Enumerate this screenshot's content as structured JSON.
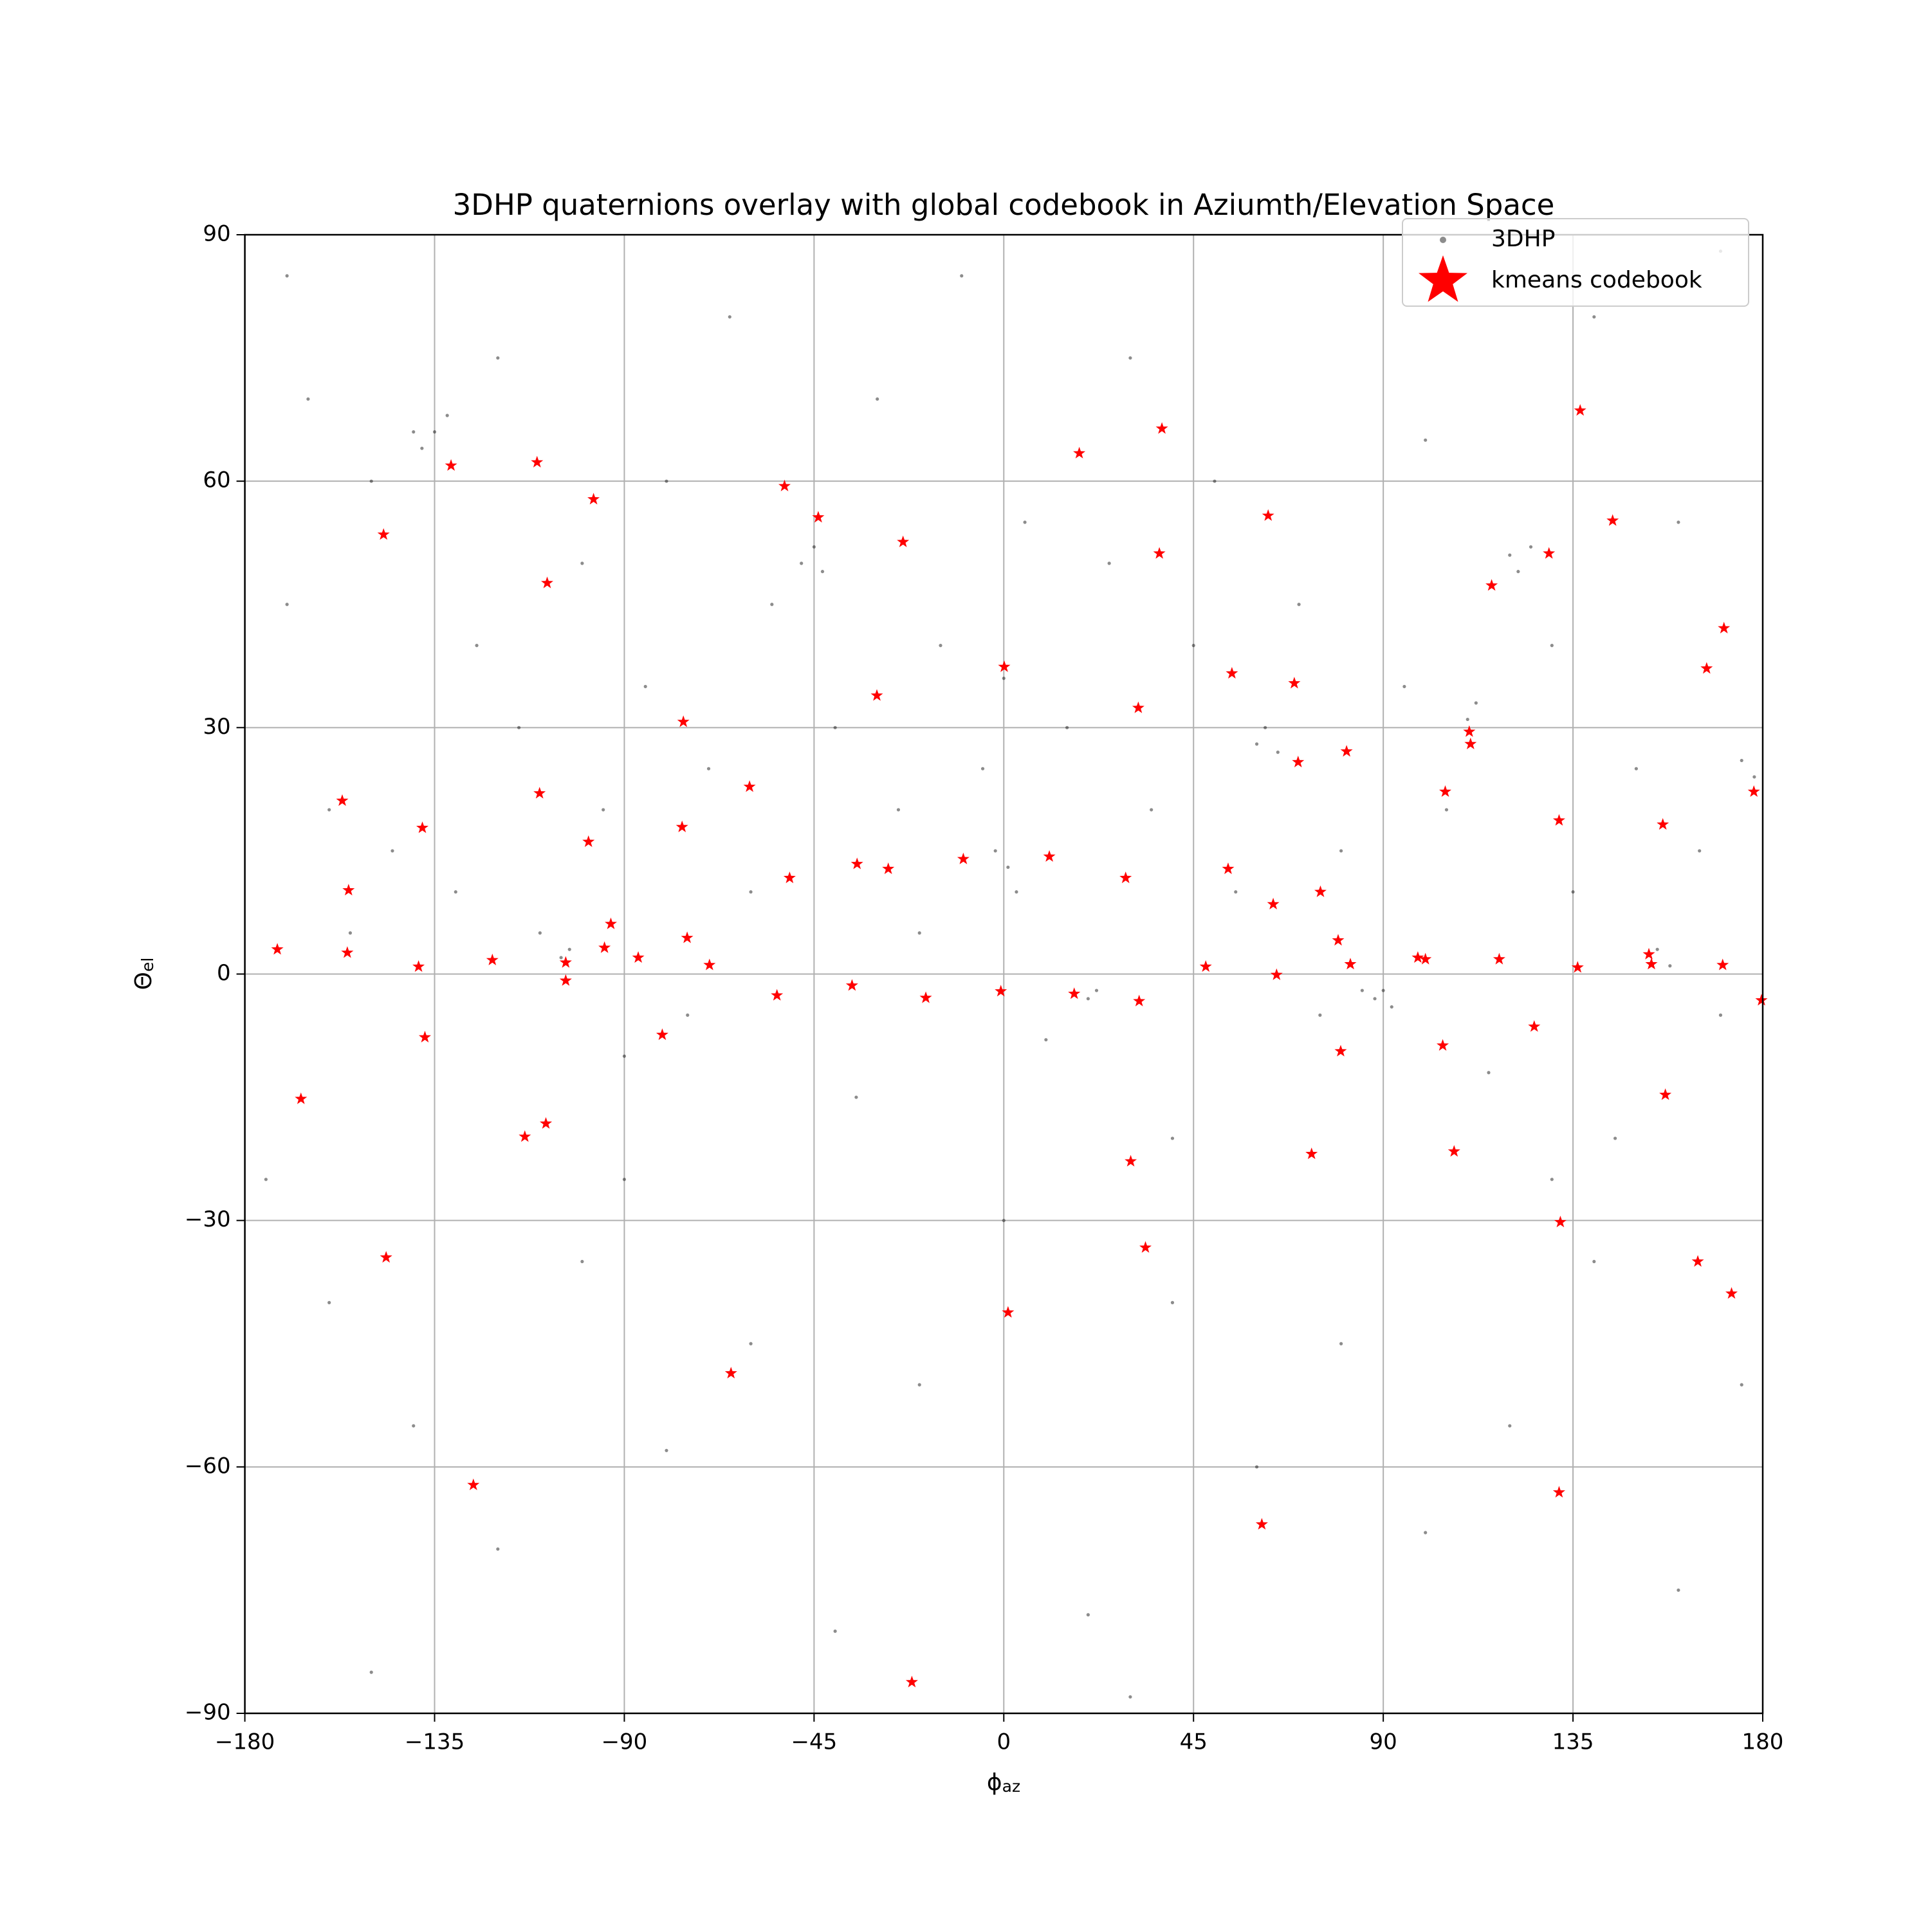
{
  "chart_data": {
    "type": "scatter",
    "title": "3DHP quaternions overlay with global codebook in Aziumth/Elevation Space",
    "xlabel": {
      "symbol": "ϕ",
      "subscript": "az"
    },
    "ylabel": {
      "symbol": "Θ",
      "subscript": "el"
    },
    "xlim": [
      -180,
      180
    ],
    "ylim": [
      -90,
      90
    ],
    "xticks": [
      {
        "value": -180,
        "label": "−180"
      },
      {
        "value": -135,
        "label": "−135"
      },
      {
        "value": -90,
        "label": "−90"
      },
      {
        "value": -45,
        "label": "−45"
      },
      0,
      45,
      90,
      135,
      180
    ],
    "yticks": [
      {
        "value": -90,
        "label": "−90"
      },
      {
        "value": -60,
        "label": "−60"
      },
      {
        "value": -30,
        "label": "−30"
      },
      0,
      30,
      60,
      90
    ],
    "grid": true,
    "legend": "upper right",
    "series": [
      {
        "name": "3DHP",
        "color": "#000000",
        "marker": "dot",
        "x": [
          -170,
          -165,
          -160,
          -155,
          -150,
          -145,
          -140,
          -138,
          -135,
          -132,
          -130,
          -125,
          -120,
          -115,
          -110,
          -105,
          -103,
          -100,
          -95,
          -90,
          -85,
          -80,
          -75,
          -70,
          -65,
          -60,
          -55,
          -48,
          -45,
          -43,
          -40,
          -35,
          -30,
          -25,
          -20,
          -15,
          -10,
          -5,
          0,
          1,
          -2,
          3,
          5,
          10,
          15,
          20,
          22,
          25,
          30,
          35,
          40,
          45,
          50,
          55,
          60,
          62,
          65,
          70,
          75,
          80,
          85,
          88,
          90,
          92,
          95,
          100,
          105,
          110,
          112,
          115,
          120,
          122,
          125,
          130,
          135,
          140,
          145,
          150,
          155,
          158,
          160,
          165,
          170,
          175,
          178,
          -175,
          -160,
          -140,
          -120,
          -100,
          -80,
          -60,
          -40,
          -20,
          0,
          20,
          40,
          60,
          80,
          100,
          120,
          140,
          160,
          175,
          -150,
          -90,
          30,
          130,
          -170,
          170
        ],
        "y": [
          45,
          70,
          20,
          5,
          60,
          15,
          66,
          64,
          66,
          68,
          10,
          40,
          75,
          30,
          5,
          2,
          3,
          50,
          20,
          -10,
          35,
          60,
          -5,
          25,
          80,
          10,
          45,
          50,
          52,
          49,
          30,
          -15,
          70,
          20,
          5,
          40,
          85,
          25,
          36,
          13,
          15,
          10,
          55,
          -8,
          30,
          -3,
          -2,
          50,
          75,
          20,
          -20,
          40,
          60,
          10,
          28,
          30,
          27,
          45,
          -5,
          15,
          -2,
          -3,
          -2,
          -4,
          35,
          65,
          20,
          31,
          33,
          -12,
          51,
          49,
          52,
          40,
          10,
          80,
          -20,
          25,
          3,
          1,
          55,
          15,
          -5,
          26,
          24,
          -25,
          -40,
          -55,
          -70,
          -35,
          -58,
          -45,
          -80,
          -50,
          -30,
          -78,
          -40,
          -60,
          -45,
          -68,
          -55,
          -35,
          -75,
          -50,
          -85,
          -25,
          -88,
          -25,
          85,
          88
        ]
      },
      {
        "name": "kmeans codebook",
        "color": "#ff0000",
        "marker": "star",
        "x": [
          -172.3,
          -166.7,
          -156.9,
          -155.4,
          -155.7,
          -147.1,
          -146.5,
          -137.9,
          -138.8,
          -137.3,
          -131.1,
          -125.8,
          -121.3,
          -110.7,
          -110.1,
          -108.3,
          -108.6,
          -113.6,
          -103.9,
          -103.9,
          -97.3,
          -98.5,
          -93.2,
          -94.7,
          -86.7,
          -81.0,
          -76.0,
          -76.3,
          -75.1,
          -69.8,
          -64.7,
          -60.3,
          -52.0,
          -53.8,
          -50.8,
          -44.0,
          -36.0,
          -34.8,
          -30.1,
          -27.4,
          -23.9,
          -21.8,
          -18.5,
          -9.6,
          -0.7,
          0.1,
          1.0,
          10.8,
          16.7,
          17.9,
          28.9,
          30.1,
          31.9,
          32.1,
          33.6,
          36.9,
          37.5,
          47.9,
          53.2,
          54.1,
          62.7,
          61.2,
          63.9,
          64.7,
          68.9,
          69.8,
          73.0,
          75.1,
          79.3,
          79.9,
          81.3,
          82.2,
          98.2,
          100.0,
          104.1,
          104.7,
          106.8,
          110.4,
          110.7,
          115.7,
          117.5,
          125.8,
          129.3,
          131.7,
          132.0,
          131.7,
          136.1,
          136.7,
          144.4,
          153.0,
          153.6,
          156.3,
          156.9,
          164.6,
          166.7,
          170.8,
          170.5,
          172.6,
          177.9,
          179.7
        ],
        "y": [
          3.0,
          -15.2,
          21.1,
          10.2,
          2.6,
          53.5,
          -34.5,
          17.8,
          0.9,
          -7.7,
          61.9,
          -62.2,
          1.7,
          62.3,
          22.0,
          47.6,
          -18.2,
          -19.8,
          1.4,
          -0.8,
          57.8,
          16.1,
          6.1,
          3.2,
          2.0,
          -7.4,
          30.7,
          17.9,
          4.4,
          1.1,
          -48.6,
          22.8,
          59.4,
          -2.6,
          11.7,
          55.6,
          -1.4,
          13.4,
          33.9,
          12.8,
          52.6,
          -86.2,
          -2.9,
          14.0,
          -2.1,
          37.4,
          -41.2,
          14.3,
          -2.4,
          63.4,
          11.7,
          -22.8,
          32.4,
          -3.3,
          -33.3,
          51.2,
          66.4,
          0.9,
          12.8,
          36.6,
          55.8,
          -67.0,
          8.5,
          -0.1,
          35.4,
          25.8,
          -21.9,
          10.0,
          4.1,
          -9.4,
          27.1,
          1.2,
          2.0,
          1.8,
          -8.7,
          22.2,
          -21.6,
          29.5,
          28.0,
          47.3,
          1.8,
          -6.4,
          51.2,
          18.7,
          -30.2,
          -63.1,
          0.8,
          68.6,
          55.2,
          2.4,
          1.2,
          18.2,
          -14.7,
          -35.0,
          37.2,
          42.1,
          1.1,
          -38.9,
          22.2,
          -3.2
        ]
      }
    ]
  }
}
